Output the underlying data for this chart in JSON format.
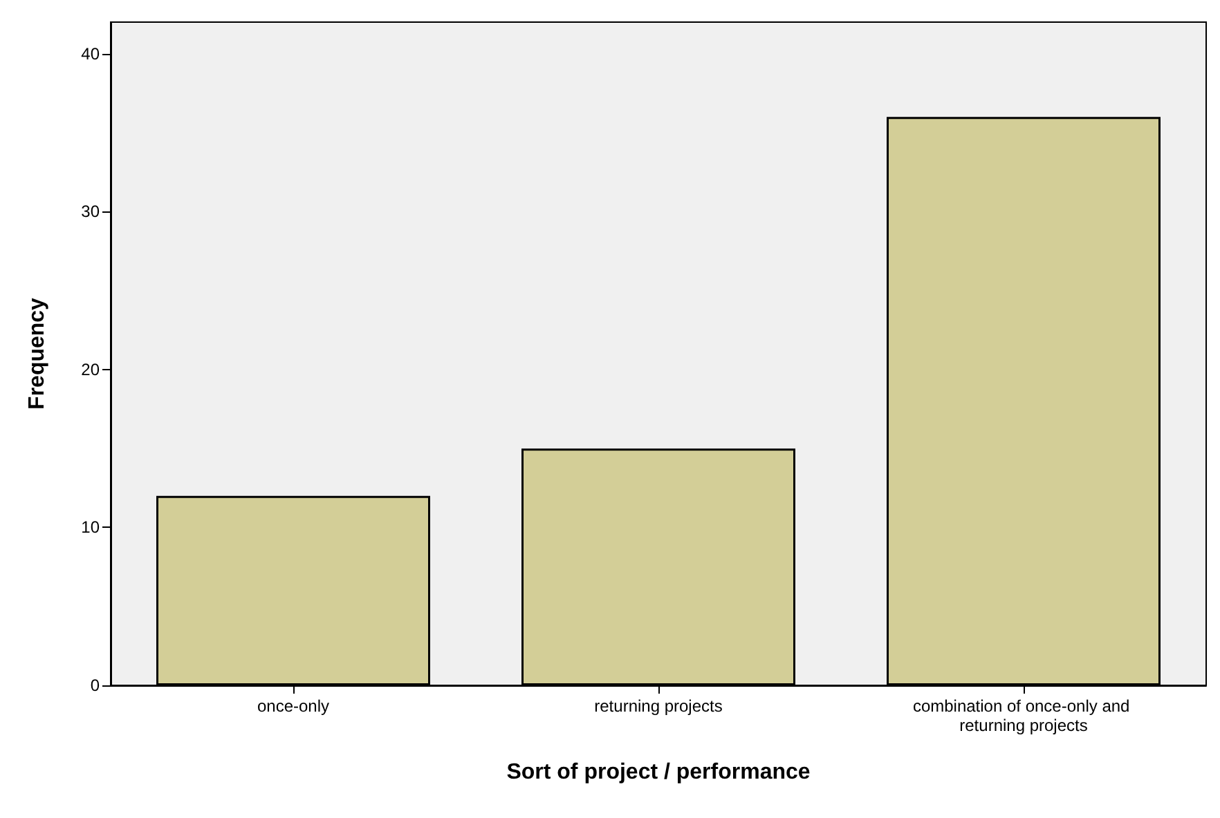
{
  "chart_data": {
    "type": "bar",
    "xlabel": "Sort of project / performance",
    "ylabel": "Frequency",
    "categories": [
      "once-only",
      "returning projects",
      "combination of once-only and returning projects"
    ],
    "values": [
      12,
      15,
      36
    ],
    "color": "#d3ce97",
    "ylim": [
      0,
      42
    ],
    "yticks": [
      0,
      10,
      20,
      30,
      40
    ],
    "grid": false
  }
}
